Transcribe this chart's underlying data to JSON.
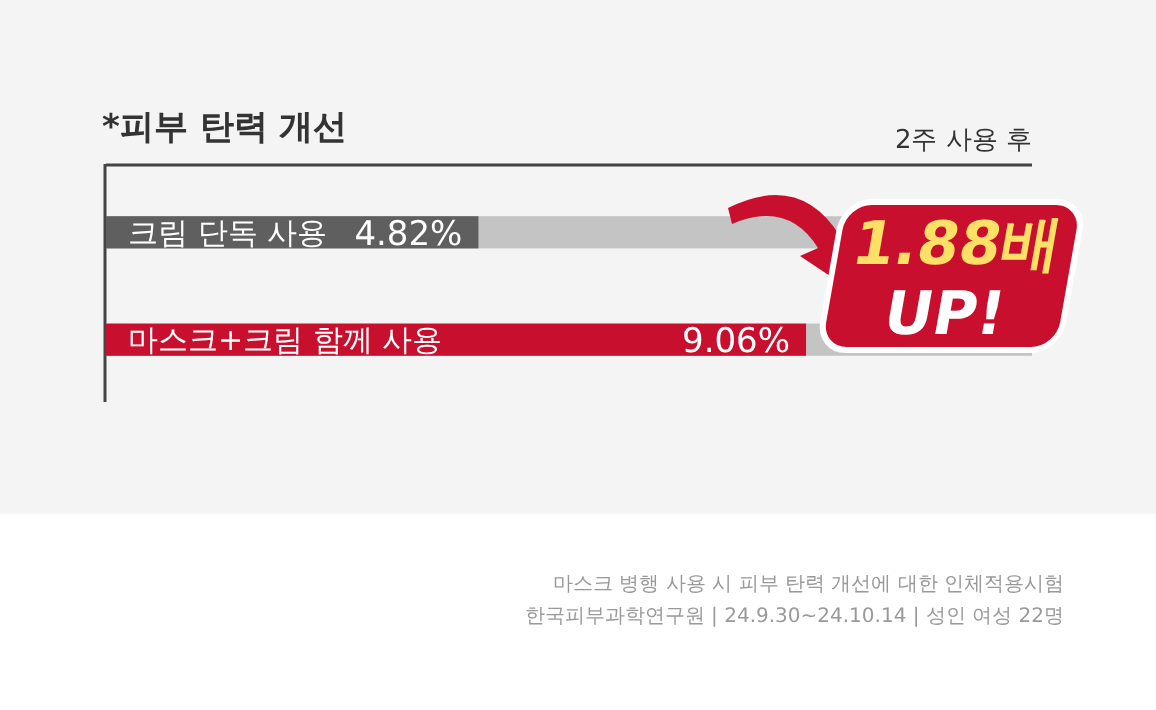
{
  "chart_data": {
    "type": "bar",
    "orientation": "horizontal",
    "title": "*피부 탄력 개선",
    "categories": [
      "크림 단독 사용",
      "마스크+크림 함께 사용"
    ],
    "values": [
      4.82,
      9.06
    ],
    "colors": [
      "#5f5f5f",
      "#c8102e"
    ],
    "value_labels": [
      "4.82%",
      "9.06%"
    ],
    "annotations": [
      "2주 사용 후",
      "1.88배 UP!",
      "마스크 병행 사용 시 피부 탄력 개선에 대한 인체적용시험",
      "한국피부과학연구원 | 24.9.30~24.10.14 | 성인 여성 22명"
    ]
  }
}
